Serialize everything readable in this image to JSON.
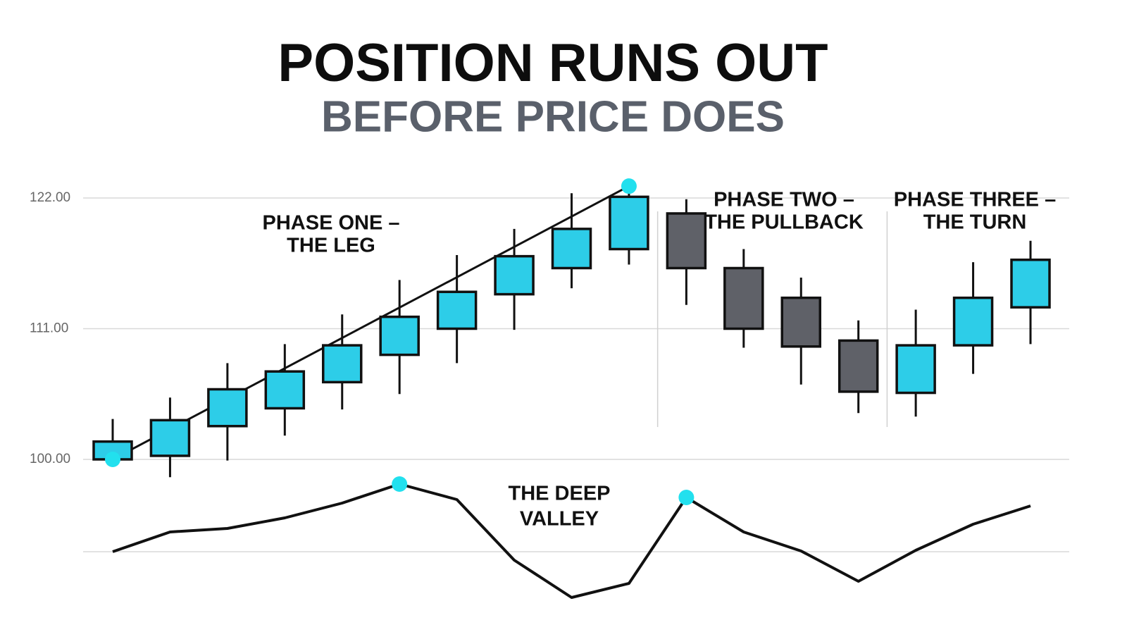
{
  "chart_data": [
    {
      "type": "candlestick",
      "title": "POSITION RUNS OUT",
      "subtitle": "BEFORE PRICE DOES",
      "open": [
        100.0,
        100.3,
        102.8,
        104.3,
        106.5,
        108.8,
        111.0,
        113.9,
        116.1,
        117.7,
        120.7,
        116.1,
        113.6,
        110.0,
        105.6,
        109.6,
        112.8
      ],
      "high": [
        103.4,
        105.2,
        108.1,
        109.7,
        112.2,
        115.1,
        117.2,
        119.4,
        122.4,
        122.8,
        121.9,
        117.7,
        115.3,
        111.7,
        112.6,
        116.6,
        118.4
      ],
      "low": [
        100.0,
        98.5,
        99.9,
        102.0,
        104.2,
        105.5,
        108.1,
        110.9,
        114.4,
        116.4,
        113.0,
        109.4,
        106.3,
        103.9,
        103.6,
        107.2,
        109.7
      ],
      "close": [
        101.5,
        103.3,
        105.9,
        107.4,
        109.6,
        112.0,
        114.1,
        117.1,
        119.4,
        122.1,
        116.1,
        111.0,
        109.5,
        105.7,
        109.6,
        113.6,
        116.8
      ],
      "up_color": "#2dcde8",
      "down_color": "#5f6168",
      "ylim": [
        98,
        124
      ],
      "yticks": [
        {
          "value": 100,
          "label": "100.00"
        },
        {
          "value": 111,
          "label": "111.00"
        },
        {
          "value": 122,
          "label": "122.00"
        }
      ],
      "grid": true,
      "trendline": {
        "start": {
          "index": 0,
          "value": 100
        },
        "end": {
          "index": 9,
          "value": 123
        },
        "marker_color": "#22e0ee"
      },
      "phase_starts": [
        10,
        14
      ],
      "annotations": [
        {
          "lines": [
            "PHASE ONE –",
            "THE LEG"
          ]
        },
        {
          "lines": [
            "PHASE TWO –",
            "THE PULLBACK"
          ]
        },
        {
          "lines": [
            "PHASE THREE –",
            "THE TURN"
          ]
        }
      ]
    },
    {
      "type": "line",
      "values": [
        0,
        28,
        33,
        48,
        69,
        96,
        74,
        -12,
        -65,
        -45,
        77,
        28,
        1,
        -42,
        2,
        39,
        65
      ],
      "color": "#111111",
      "ylim": [
        -70,
        100
      ],
      "baseline": 0,
      "highlight_points": [
        5,
        10
      ],
      "marker_color": "#22e0ee",
      "annotation": {
        "lines": [
          "THE DEEP",
          "VALLEY"
        ]
      }
    }
  ]
}
